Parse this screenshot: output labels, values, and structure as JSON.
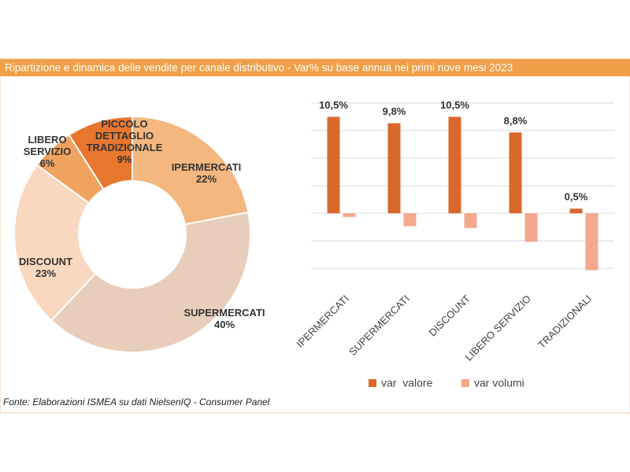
{
  "title": "Ripartizione e dinamica delle vendite per canale distributivo - Var% su base annua nei primi nove mesi 2023",
  "source": "Fonte: Elaborazioni ISMEA su dati NielsenIQ - Consumer Panel",
  "chart_data": [
    {
      "type": "donut",
      "categories": [
        "IPERMERCATI",
        "SUPERMERCATI",
        "DISCOUNT",
        "LIBERO SERVIZIO",
        "PICCOLO DETTAGLIO TRADIZIONALE"
      ],
      "values": [
        22,
        40,
        23,
        6,
        9
      ],
      "value_labels": [
        "22%",
        "40%",
        "23%",
        "6%",
        "9%"
      ],
      "colors": [
        "#f4b77f",
        "#e8cdbb",
        "#f9d8bf",
        "#f0a35f",
        "#e8772e"
      ]
    },
    {
      "type": "bar",
      "categories": [
        "IPERMERCATI",
        "SUPERMERCATI",
        "DISCOUNT",
        "LIBERO SERVIZIO",
        "TRADIZIONALI"
      ],
      "series": [
        {
          "name": "var  valore",
          "color": "#d9692a",
          "values": [
            10.5,
            9.8,
            10.5,
            8.8,
            0.5
          ],
          "value_labels": [
            "10,5%",
            "9,8%",
            "10,5%",
            "8,8%",
            "0,5%"
          ]
        },
        {
          "name": "var volumi",
          "color": "#f4a98c",
          "values": [
            -0.4,
            -1.4,
            -1.6,
            -3.1,
            -6.2
          ]
        }
      ],
      "ylim": [
        -6.5,
        12
      ],
      "yticks": [
        -6,
        -3,
        0,
        3,
        6,
        9,
        12
      ],
      "grid": true
    }
  ]
}
